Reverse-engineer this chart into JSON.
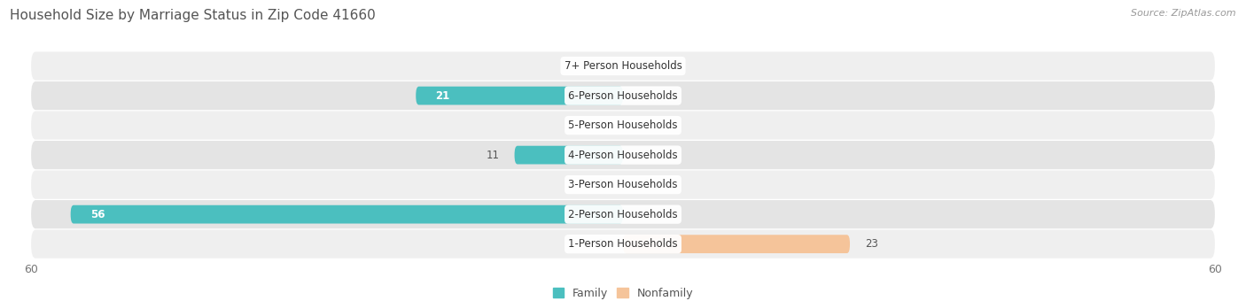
{
  "title": "Household Size by Marriage Status in Zip Code 41660",
  "source": "Source: ZipAtlas.com",
  "categories": [
    "7+ Person Households",
    "6-Person Households",
    "5-Person Households",
    "4-Person Households",
    "3-Person Households",
    "2-Person Households",
    "1-Person Households"
  ],
  "family_values": [
    0,
    21,
    0,
    11,
    0,
    56,
    0
  ],
  "nonfamily_values": [
    0,
    0,
    0,
    0,
    0,
    0,
    23
  ],
  "xlim": [
    -60,
    60
  ],
  "family_color": "#4BBFBF",
  "nonfamily_color": "#F5C49A",
  "row_bg_even": "#EFEFEF",
  "row_bg_odd": "#E4E4E4",
  "title_fontsize": 11,
  "label_fontsize": 8.5,
  "tick_fontsize": 9,
  "source_fontsize": 8,
  "legend_fontsize": 9,
  "bar_height": 0.62,
  "background_color": "#FFFFFF"
}
